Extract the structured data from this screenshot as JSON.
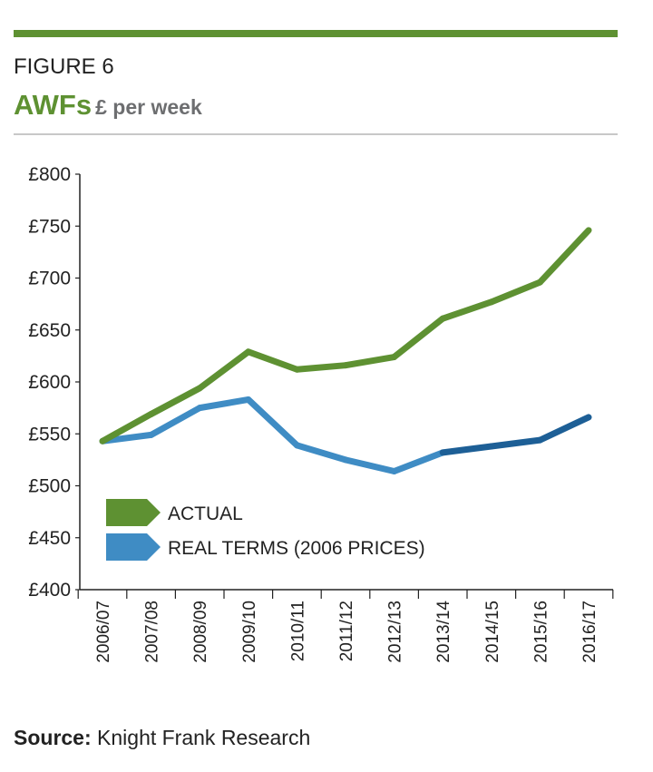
{
  "header": {
    "figure": "FIGURE 6",
    "title": "AWFs",
    "subtitle": "£ per week"
  },
  "source": {
    "label": "Source:",
    "text": " Knight Frank Research"
  },
  "colors": {
    "actual": "#5e9132",
    "real": "#3f8cc4",
    "real_dark": "#1d5f96"
  },
  "chart_data": {
    "type": "line",
    "title": "AWFs £ per week",
    "xlabel": "",
    "ylabel": "",
    "ylim": [
      400,
      800
    ],
    "yticks": [
      400,
      450,
      500,
      550,
      600,
      650,
      700,
      750,
      800
    ],
    "ytick_labels": [
      "£400",
      "£450",
      "£500",
      "£550",
      "£600",
      "£650",
      "£700",
      "£750",
      "£800"
    ],
    "categories": [
      "2006/07",
      "2007/08",
      "2008/09",
      "2009/10",
      "2010/11",
      "2011/12",
      "2012/13",
      "2013/14",
      "2014/15",
      "2015/16",
      "2016/17"
    ],
    "series": [
      {
        "name": "ACTUAL",
        "values": [
          543,
          569,
          594,
          629,
          612,
          616,
          624,
          661,
          677,
          696,
          746
        ]
      },
      {
        "name": "REAL TERMS (2006 PRICES)",
        "values": [
          543,
          549,
          575,
          583,
          539,
          525,
          514,
          532,
          538,
          544,
          566
        ]
      }
    ],
    "legend_position": "bottom-left",
    "grid": false
  }
}
